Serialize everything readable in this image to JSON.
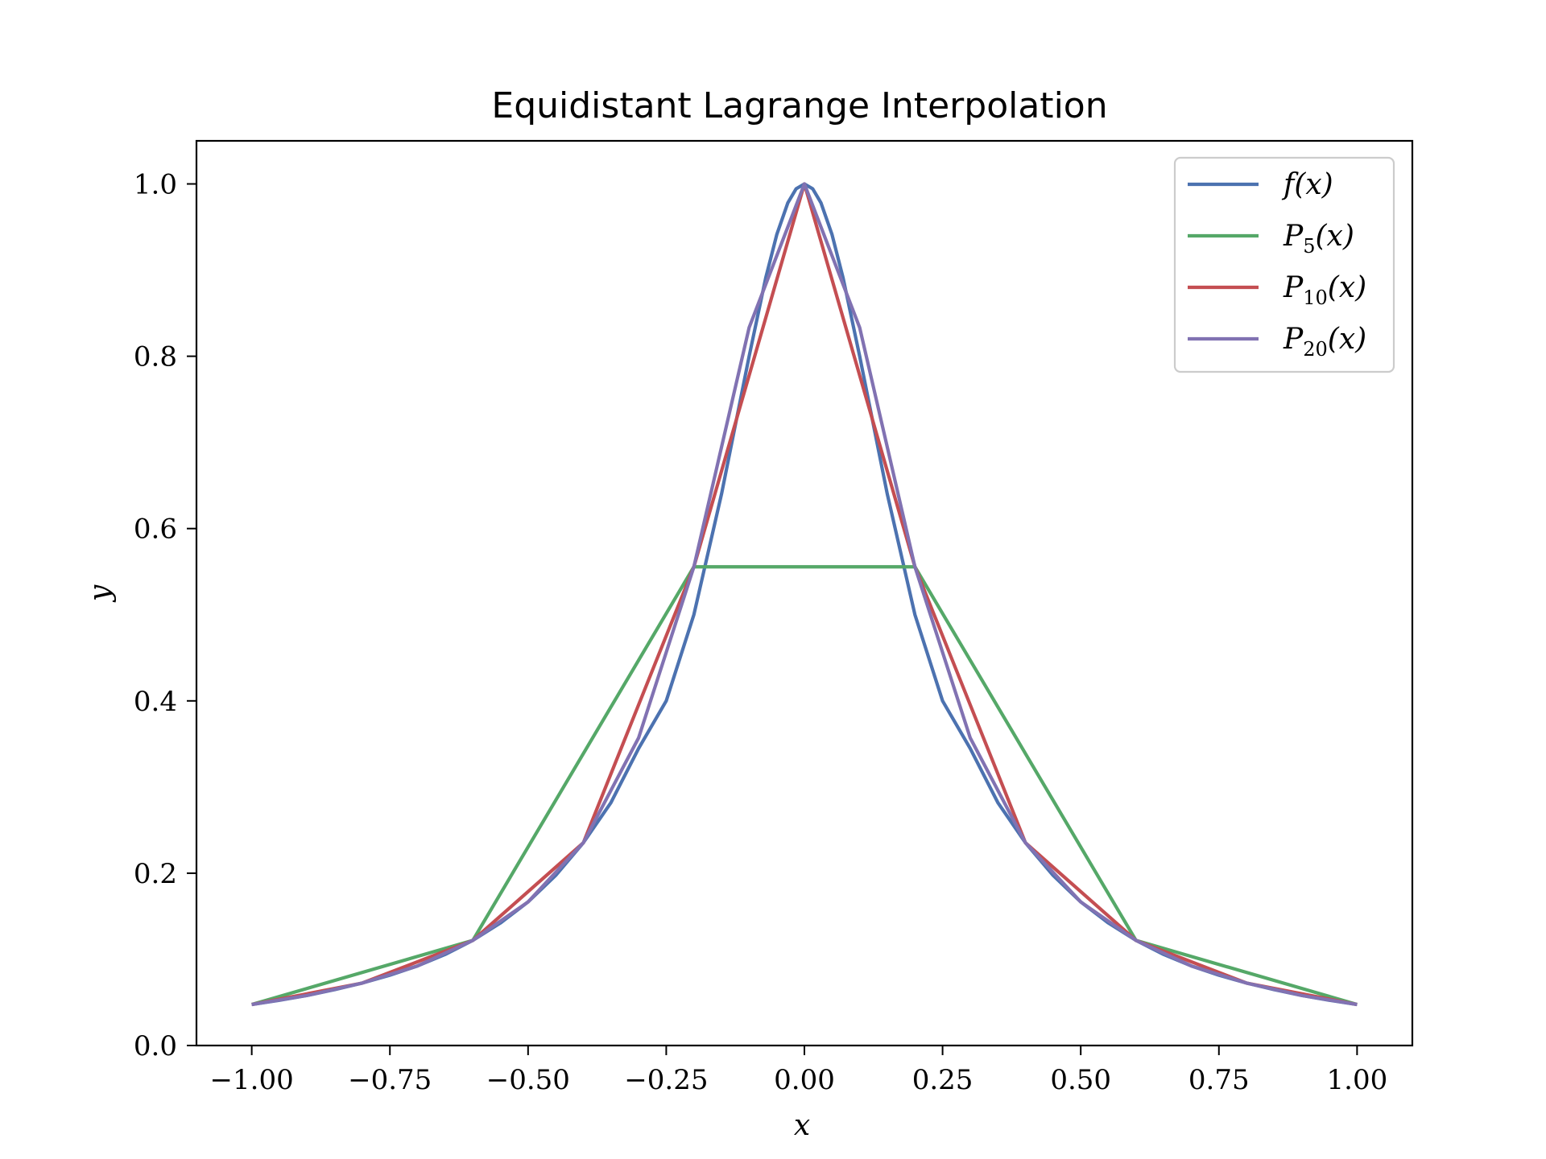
{
  "chart_data": {
    "type": "line",
    "title": "Equidistant Lagrange Interpolation",
    "xlabel": "x",
    "ylabel": "y",
    "xlim": [
      -1.1,
      1.1
    ],
    "ylim": [
      0.0,
      1.05
    ],
    "xticks": [
      -1.0,
      -0.75,
      -0.5,
      -0.25,
      0.0,
      0.25,
      0.5,
      0.75,
      1.0
    ],
    "xtick_labels": [
      "−1.00",
      "−0.75",
      "−0.50",
      "−0.25",
      "0.00",
      "0.25",
      "0.50",
      "0.75",
      "1.00"
    ],
    "yticks": [
      0.0,
      0.2,
      0.4,
      0.6,
      0.8,
      1.0
    ],
    "ytick_labels": [
      "0.0",
      "0.2",
      "0.4",
      "0.6",
      "0.8",
      "1.0"
    ],
    "grid": false,
    "legend_position": "top-right",
    "series": [
      {
        "name": "f(x)",
        "legend_main": "f(x)",
        "legend_sub": "",
        "legend_tail": "",
        "color": "#4c72b0",
        "x": [
          -1.0,
          -0.95,
          -0.9,
          -0.85,
          -0.8,
          -0.75,
          -0.7,
          -0.65,
          -0.6,
          -0.55,
          -0.5,
          -0.45,
          -0.4,
          -0.35,
          -0.3,
          -0.25,
          -0.2,
          -0.15,
          -0.1,
          -0.07,
          -0.05,
          -0.03,
          -0.015,
          0.0,
          0.015,
          0.03,
          0.05,
          0.07,
          0.1,
          0.15,
          0.2,
          0.25,
          0.3,
          0.35,
          0.4,
          0.45,
          0.5,
          0.55,
          0.6,
          0.65,
          0.7,
          0.75,
          0.8,
          0.85,
          0.9,
          0.95,
          1.0
        ],
        "y": [
          0.0476,
          0.0525,
          0.0581,
          0.0648,
          0.0725,
          0.0816,
          0.0924,
          0.1057,
          0.122,
          0.1422,
          0.1667,
          0.1975,
          0.2353,
          0.282,
          0.3448,
          0.4,
          0.5,
          0.64,
          0.8,
          0.8909,
          0.9412,
          0.978,
          0.9944,
          1.0,
          0.9944,
          0.978,
          0.9412,
          0.8909,
          0.8,
          0.64,
          0.5,
          0.4,
          0.3448,
          0.282,
          0.2353,
          0.1975,
          0.1667,
          0.1422,
          0.122,
          0.1057,
          0.0924,
          0.0816,
          0.0725,
          0.0648,
          0.0581,
          0.0525,
          0.0476
        ]
      },
      {
        "name": "P5(x)",
        "legend_main": "P",
        "legend_sub": "5",
        "legend_tail": "(x)",
        "color": "#55a868",
        "x": [
          -1.0,
          -0.6,
          -0.2,
          0.2,
          0.6,
          1.0
        ],
        "y": [
          0.0476,
          0.122,
          0.5556,
          0.5556,
          0.122,
          0.0476
        ]
      },
      {
        "name": "P10(x)",
        "legend_main": "P",
        "legend_sub": "10",
        "legend_tail": "(x)",
        "color": "#c44e52",
        "x": [
          -1.0,
          -0.8,
          -0.6,
          -0.4,
          -0.2,
          0.0,
          0.2,
          0.4,
          0.6,
          0.8,
          1.0
        ],
        "y": [
          0.0476,
          0.0725,
          0.122,
          0.2353,
          0.5556,
          1.0,
          0.5556,
          0.2353,
          0.122,
          0.0725,
          0.0476
        ]
      },
      {
        "name": "P20(x)",
        "legend_main": "P",
        "legend_sub": "20",
        "legend_tail": "(x)",
        "color": "#8172b2",
        "x": [
          -1.0,
          -0.9,
          -0.8,
          -0.7,
          -0.6,
          -0.5,
          -0.4,
          -0.3,
          -0.2,
          -0.1,
          0.0,
          0.1,
          0.2,
          0.3,
          0.4,
          0.5,
          0.6,
          0.7,
          0.8,
          0.9,
          1.0
        ],
        "y": [
          0.0476,
          0.0581,
          0.0725,
          0.0924,
          0.122,
          0.1667,
          0.2353,
          0.3571,
          0.5556,
          0.8333,
          1.0,
          0.8333,
          0.5556,
          0.3571,
          0.2353,
          0.1667,
          0.122,
          0.0924,
          0.0725,
          0.0581,
          0.0476
        ]
      }
    ]
  }
}
